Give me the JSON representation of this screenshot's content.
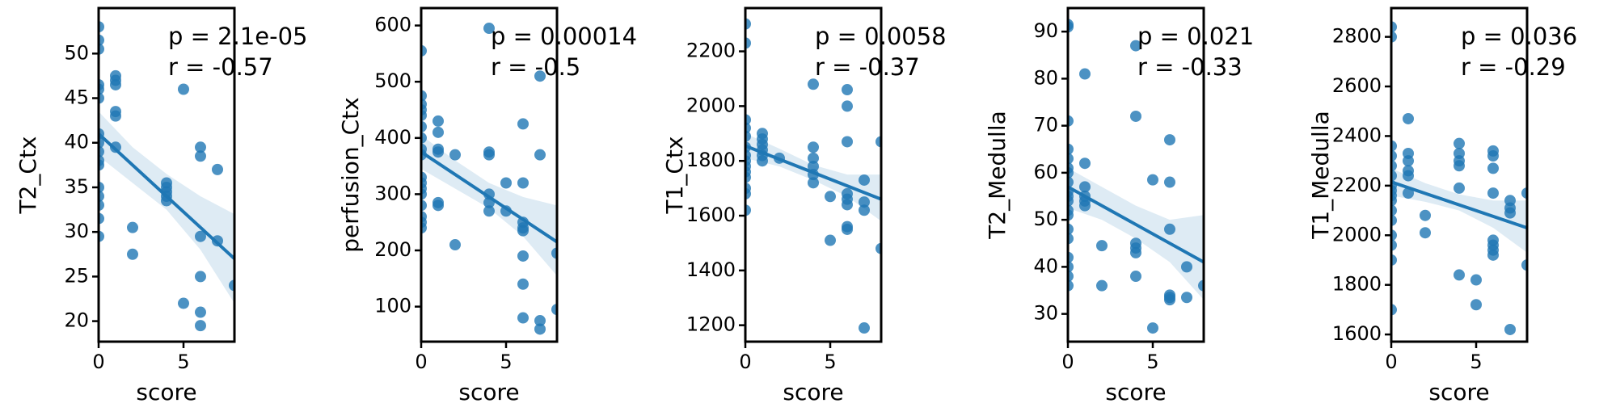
{
  "chart_data": [
    {
      "type": "scatter",
      "xlabel": "score",
      "ylabel": "T2_Ctx",
      "color": "#1f77b4",
      "annotations": [
        "p = 2.1e-05",
        "r = -0.57"
      ],
      "xlim": [
        0,
        8
      ],
      "ylim": [
        17.7,
        55.1
      ],
      "xticks": [
        0,
        5
      ],
      "yticks": [
        20,
        25,
        30,
        35,
        40,
        45,
        50
      ],
      "x": [
        0,
        0,
        0,
        0,
        0,
        0,
        0,
        0,
        0,
        0,
        0,
        0,
        0,
        0,
        0,
        0,
        1,
        1,
        1,
        1,
        1,
        1,
        2,
        2,
        4,
        4,
        4,
        4,
        4,
        5,
        5,
        6,
        6,
        6,
        6,
        6,
        6,
        7,
        7,
        8
      ],
      "y": [
        53,
        51.5,
        50.5,
        46.5,
        46,
        45,
        41,
        40,
        39,
        38,
        37.5,
        35,
        34,
        33,
        31.5,
        29.5,
        47.5,
        47,
        46.5,
        43.5,
        43,
        39.5,
        30.5,
        27.5,
        35.5,
        35,
        34.5,
        34,
        33.5,
        46,
        22,
        39.5,
        38.5,
        29.5,
        25,
        21,
        19.5,
        37,
        29,
        24
      ],
      "fit": {
        "x": [
          0,
          8
        ],
        "y": [
          41,
          27
        ]
      },
      "ci": {
        "x": [
          0,
          2,
          4,
          6,
          8
        ],
        "lower": [
          38.5,
          35.5,
          32.5,
          28,
          22
        ],
        "upper": [
          43.5,
          39.5,
          36.5,
          34,
          32
        ]
      }
    },
    {
      "type": "scatter",
      "xlabel": "score",
      "ylabel": "perfusion_Ctx",
      "color": "#1f77b4",
      "annotations": [
        "p = 0.00014",
        "r = -0.5"
      ],
      "xlim": [
        0,
        8
      ],
      "ylim": [
        37.7,
        631
      ],
      "xticks": [
        0,
        5
      ],
      "yticks": [
        100,
        200,
        300,
        400,
        500,
        600
      ],
      "x": [
        0,
        0,
        0,
        0,
        0,
        0,
        0,
        0,
        0,
        0,
        0,
        0,
        0,
        0,
        0,
        0,
        0,
        1,
        1,
        1,
        1,
        1,
        1,
        2,
        2,
        4,
        4,
        4,
        4,
        4,
        4,
        5,
        5,
        6,
        6,
        6,
        6,
        6,
        6,
        6,
        6,
        7,
        7,
        7,
        7,
        8,
        8
      ],
      "y": [
        555,
        475,
        460,
        450,
        440,
        420,
        400,
        380,
        370,
        330,
        320,
        310,
        300,
        280,
        260,
        250,
        240,
        430,
        410,
        380,
        375,
        285,
        280,
        370,
        210,
        595,
        375,
        370,
        300,
        285,
        270,
        320,
        270,
        425,
        320,
        250,
        240,
        235,
        190,
        140,
        80,
        510,
        370,
        75,
        60,
        195,
        95
      ],
      "fit": {
        "x": [
          0,
          8
        ],
        "y": [
          375,
          215
        ]
      },
      "ci": {
        "x": [
          0,
          2,
          4,
          6,
          8
        ],
        "lower": [
          345,
          310,
          275,
          225,
          155
        ],
        "upper": [
          405,
          360,
          320,
          295,
          280
        ]
      }
    },
    {
      "type": "scatter",
      "xlabel": "score",
      "ylabel": "T1_Ctx",
      "color": "#1f77b4",
      "annotations": [
        "p = 0.0058",
        "r = -0.37"
      ],
      "xlim": [
        0,
        8
      ],
      "ylim": [
        1140,
        2358
      ],
      "xticks": [
        0,
        5
      ],
      "yticks": [
        1200,
        1400,
        1600,
        1800,
        2000,
        2200
      ],
      "x": [
        0,
        0,
        0,
        0,
        0,
        0,
        0,
        0,
        0,
        0,
        0,
        0,
        0,
        0,
        1,
        1,
        1,
        1,
        1,
        1,
        2,
        4,
        4,
        4,
        4,
        4,
        4,
        5,
        5,
        6,
        6,
        6,
        6,
        6,
        6,
        6,
        6,
        7,
        7,
        7,
        7,
        8,
        8
      ],
      "y": [
        2300,
        2230,
        1950,
        1920,
        1890,
        1850,
        1820,
        1800,
        1780,
        1760,
        1740,
        1700,
        1680,
        1620,
        1900,
        1880,
        1860,
        1840,
        1820,
        1800,
        1810,
        2080,
        1850,
        1810,
        1780,
        1750,
        1720,
        1670,
        1510,
        2060,
        2000,
        1870,
        1680,
        1660,
        1640,
        1560,
        1550,
        1730,
        1650,
        1620,
        1190,
        1870,
        1480
      ],
      "fit": {
        "x": [
          0,
          8
        ],
        "y": [
          1855,
          1660
        ]
      },
      "ci": {
        "x": [
          0,
          2,
          4,
          6,
          8
        ],
        "lower": [
          1810,
          1780,
          1730,
          1670,
          1580
        ],
        "upper": [
          1900,
          1845,
          1785,
          1750,
          1750
        ]
      }
    },
    {
      "type": "scatter",
      "xlabel": "score",
      "ylabel": "T2_Medulla",
      "color": "#1f77b4",
      "annotations": [
        "p = 0.021",
        "r = -0.33"
      ],
      "xlim": [
        0,
        8
      ],
      "ylim": [
        24.1,
        95
      ],
      "xticks": [
        0,
        5
      ],
      "yticks": [
        30,
        40,
        50,
        60,
        70,
        80,
        90
      ],
      "x": [
        0,
        0,
        0,
        0,
        0,
        0,
        0,
        0,
        0,
        0,
        0,
        0,
        0,
        0,
        0,
        0,
        0,
        0,
        0,
        1,
        1,
        1,
        1,
        1,
        1,
        2,
        2,
        4,
        4,
        4,
        4,
        4,
        4,
        5,
        5,
        6,
        6,
        6,
        6,
        6,
        6,
        7,
        7,
        8
      ],
      "y": [
        91.5,
        91,
        71,
        65,
        63,
        61,
        60,
        58,
        56,
        55,
        54,
        52,
        51,
        48,
        46,
        42,
        40,
        38,
        36,
        81,
        62,
        57,
        55,
        54,
        53,
        44.5,
        36,
        87,
        72,
        45,
        44,
        43,
        38,
        58.5,
        27,
        67,
        58,
        48,
        34,
        33.5,
        33,
        40,
        33.5,
        36
      ],
      "fit": {
        "x": [
          0,
          8
        ],
        "y": [
          57,
          41
        ]
      },
      "ci": {
        "x": [
          0,
          2,
          4,
          6,
          8
        ],
        "lower": [
          52.5,
          50,
          46,
          41,
          33
        ],
        "upper": [
          61,
          57,
          53,
          50,
          51
        ]
      }
    },
    {
      "type": "scatter",
      "xlabel": "score",
      "ylabel": "T1_Medulla",
      "color": "#1f77b4",
      "annotations": [
        "p = 0.036",
        "r = -0.29"
      ],
      "xlim": [
        0,
        8
      ],
      "ylim": [
        1571,
        2916
      ],
      "xticks": [
        0,
        5
      ],
      "yticks": [
        1600,
        1800,
        2000,
        2200,
        2400,
        2600,
        2800
      ],
      "x": [
        0,
        0,
        0,
        0,
        0,
        0,
        0,
        0,
        0,
        0,
        0,
        0,
        0,
        0,
        0,
        0,
        1,
        1,
        1,
        1,
        1,
        1,
        2,
        2,
        4,
        4,
        4,
        4,
        4,
        4,
        5,
        5,
        6,
        6,
        6,
        6,
        6,
        6,
        6,
        6,
        7,
        7,
        7,
        7,
        8,
        8
      ],
      "y": [
        2840,
        2800,
        2360,
        2320,
        2280,
        2240,
        2200,
        2180,
        2160,
        2140,
        2100,
        2060,
        2000,
        1960,
        1900,
        1700,
        2470,
        2330,
        2300,
        2260,
        2240,
        2170,
        2080,
        2010,
        2370,
        2330,
        2300,
        2280,
        2190,
        1840,
        1820,
        1720,
        2340,
        2320,
        2270,
        2170,
        1980,
        1960,
        1940,
        1920,
        2140,
        2110,
        2090,
        1620,
        2170,
        1880
      ],
      "fit": {
        "x": [
          0,
          8
        ],
        "y": [
          2215,
          2030
        ]
      },
      "ci": {
        "x": [
          0,
          2,
          4,
          6,
          8
        ],
        "lower": [
          2160,
          2135,
          2100,
          2030,
          1930
        ],
        "upper": [
          2270,
          2210,
          2165,
          2140,
          2140
        ]
      }
    }
  ]
}
